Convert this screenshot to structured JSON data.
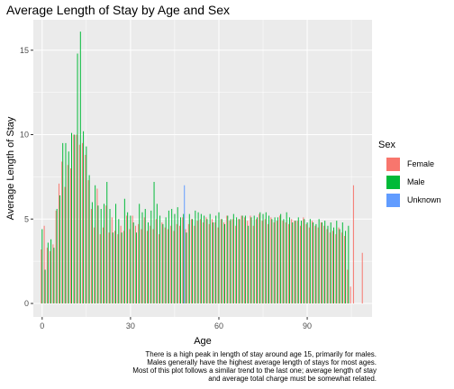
{
  "chart_data": {
    "type": "bar",
    "title": "Average Length of Stay by Age and Sex",
    "xlabel": "Age",
    "ylabel": "Average Length of Stay",
    "xlim": [
      -3,
      112
    ],
    "ylim": [
      -0.8,
      16.8
    ],
    "x_ticks": [
      0,
      30,
      60,
      90
    ],
    "y_ticks": [
      0,
      5,
      10,
      15
    ],
    "grid": true,
    "legend_placement": "right",
    "legend_title": "Sex",
    "series": [
      {
        "name": "Female",
        "color": "#F8766D",
        "offset": -0.3,
        "x": [
          0,
          1,
          2,
          3,
          4,
          5,
          6,
          7,
          8,
          9,
          10,
          11,
          12,
          13,
          14,
          15,
          16,
          17,
          18,
          19,
          20,
          21,
          22,
          23,
          24,
          25,
          26,
          27,
          28,
          29,
          30,
          31,
          32,
          33,
          34,
          35,
          36,
          37,
          38,
          39,
          40,
          41,
          42,
          43,
          44,
          45,
          46,
          47,
          48,
          49,
          50,
          51,
          52,
          53,
          54,
          55,
          56,
          57,
          58,
          59,
          60,
          61,
          62,
          63,
          64,
          65,
          66,
          67,
          68,
          69,
          70,
          71,
          72,
          73,
          74,
          75,
          76,
          77,
          78,
          79,
          80,
          81,
          82,
          83,
          84,
          85,
          86,
          87,
          88,
          89,
          90,
          91,
          92,
          93,
          94,
          95,
          96,
          97,
          98,
          99,
          100,
          101,
          102,
          103,
          104,
          105,
          106,
          107,
          108,
          109
        ],
        "values": [
          3.2,
          4.6,
          3.3,
          3.1,
          3.5,
          5.5,
          7.1,
          8.4,
          6.9,
          8.2,
          8.0,
          10.0,
          10.0,
          9.4,
          9.5,
          8.8,
          7.3,
          5.6,
          4.5,
          6.8,
          4.1,
          4.5,
          5.8,
          4.2,
          5.1,
          4.3,
          4.1,
          4.6,
          4.3,
          5.2,
          4.4,
          5.2,
          4.6,
          4.7,
          4.4,
          5.1,
          4.3,
          4.6,
          4.4,
          5.0,
          4.1,
          4.8,
          4.5,
          4.4,
          4.6,
          4.3,
          4.7,
          4.6,
          5.1,
          4.4,
          4.7,
          5.0,
          4.6,
          4.9,
          5.0,
          4.8,
          5.1,
          4.7,
          5.0,
          4.8,
          4.5,
          5.0,
          4.8,
          5.2,
          4.9,
          5.0,
          4.6,
          5.0,
          5.2,
          5.1,
          4.9,
          5.2,
          4.6,
          5.0,
          5.3,
          4.9,
          5.0,
          4.7,
          5.1,
          4.8,
          4.9,
          5.2,
          4.9,
          4.8,
          4.7,
          5.0,
          4.9,
          4.9,
          4.6,
          5.1,
          4.7,
          4.5,
          4.9,
          4.6,
          4.5,
          4.8,
          4.6,
          4.4,
          4.2,
          4.3,
          4.1,
          4.5,
          4.2,
          4.0,
          2.0,
          1.0,
          7.0,
          0,
          0,
          3.0
        ]
      },
      {
        "name": "Male",
        "color": "#00BA38",
        "offset": 0,
        "x": [
          0,
          1,
          2,
          3,
          4,
          5,
          6,
          7,
          8,
          9,
          10,
          11,
          12,
          13,
          14,
          15,
          16,
          17,
          18,
          19,
          20,
          21,
          22,
          23,
          24,
          25,
          26,
          27,
          28,
          29,
          30,
          31,
          32,
          33,
          34,
          35,
          36,
          37,
          38,
          39,
          40,
          41,
          42,
          43,
          44,
          45,
          46,
          47,
          48,
          49,
          50,
          51,
          52,
          53,
          54,
          55,
          56,
          57,
          58,
          59,
          60,
          61,
          62,
          63,
          64,
          65,
          66,
          67,
          68,
          69,
          70,
          71,
          72,
          73,
          74,
          75,
          76,
          77,
          78,
          79,
          80,
          81,
          82,
          83,
          84,
          85,
          86,
          87,
          88,
          89,
          90,
          91,
          92,
          93,
          94,
          95,
          96,
          97,
          98,
          99,
          100,
          101,
          102,
          103,
          104,
          105,
          106,
          107,
          108,
          109
        ],
        "values": [
          4.4,
          2.0,
          3.6,
          3.8,
          3.3,
          5.6,
          6.4,
          9.5,
          9.5,
          9.0,
          10.1,
          10.0,
          14.8,
          16.1,
          10.2,
          9.3,
          7.6,
          6.0,
          7.0,
          5.8,
          5.6,
          5.9,
          7.2,
          5.6,
          4.2,
          5.9,
          5.0,
          4.2,
          6.2,
          5.4,
          5.2,
          4.8,
          4.2,
          5.9,
          5.4,
          5.6,
          4.8,
          5.5,
          7.2,
          5.9,
          5.2,
          4.7,
          5.1,
          5.5,
          5.6,
          5.3,
          5.7,
          5.1,
          5.3,
          4.2,
          5.3,
          5.0,
          5.5,
          5.4,
          5.3,
          5.2,
          5.0,
          5.3,
          4.8,
          5.2,
          5.4,
          5.0,
          4.7,
          5.2,
          5.0,
          5.3,
          5.1,
          5.0,
          5.2,
          5.2,
          4.6,
          5.1,
          5.2,
          5.1,
          5.4,
          5.3,
          5.4,
          5.2,
          5.0,
          5.1,
          5.1,
          5.3,
          5.0,
          5.4,
          5.1,
          4.8,
          4.9,
          5.1,
          4.9,
          5.0,
          4.8,
          5.0,
          4.8,
          4.7,
          5.0,
          4.8,
          4.9,
          4.6,
          4.8,
          4.5,
          4.9,
          4.4,
          4.8,
          4.3,
          4.6,
          0,
          0,
          0,
          0,
          0
        ]
      },
      {
        "name": "Unknown",
        "color": "#619CFF",
        "offset": 0.3,
        "x": [
          48
        ],
        "values": [
          7.0
        ]
      }
    ]
  },
  "caption": "There is a high peak in length of stay around age 15, primarily for males.\nMales generally have the highest average length of stays for most ages.\nMost of this plot follows a similar trend to the last one; average length of stay\nand average total charge must be somewhat related."
}
